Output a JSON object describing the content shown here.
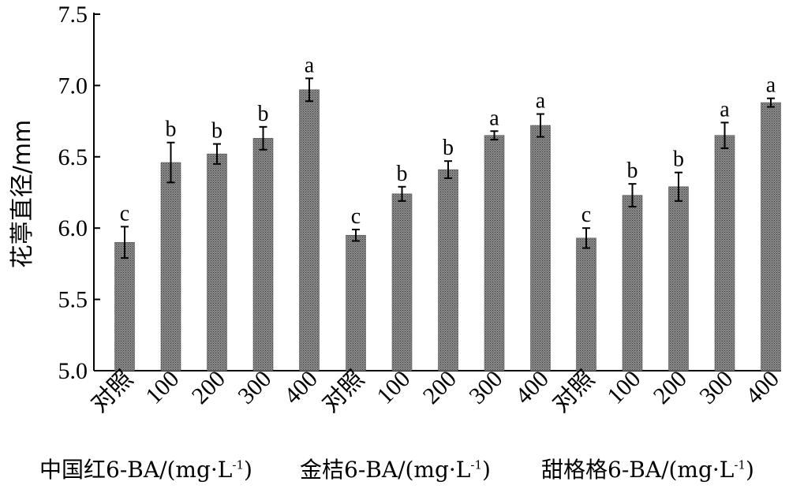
{
  "chart_data": {
    "type": "bar",
    "ylabel": "花葶直径/mm",
    "ylim": [
      5.0,
      7.5
    ],
    "yticks": [
      "5.0",
      "5.5",
      "6.0",
      "6.5",
      "7.0",
      "7.5"
    ],
    "grid": false,
    "bar_color": "#7a7a7a",
    "groups": [
      {
        "label": {
          "main": "中国红6-BA/(mg·L",
          "sup": "-1",
          "tail": ")"
        },
        "categories": [
          "对照",
          "100",
          "200",
          "300",
          "400"
        ],
        "values": [
          5.9,
          6.46,
          6.52,
          6.63,
          6.97
        ],
        "errors": [
          0.11,
          0.14,
          0.07,
          0.08,
          0.08
        ],
        "letters": [
          "c",
          "b",
          "b",
          "b",
          "a"
        ]
      },
      {
        "label": {
          "main": "金桔6-BA/(mg·L",
          "sup": "-1",
          "tail": ")"
        },
        "categories": [
          "对照",
          "100",
          "200",
          "300",
          "400"
        ],
        "values": [
          5.95,
          6.24,
          6.41,
          6.65,
          6.72
        ],
        "errors": [
          0.04,
          0.05,
          0.06,
          0.03,
          0.08
        ],
        "letters": [
          "c",
          "b",
          "b",
          "a",
          "a"
        ]
      },
      {
        "label": {
          "main": "甜格格6-BA/(mg·L",
          "sup": "-1",
          "tail": ")"
        },
        "categories": [
          "对照",
          "100",
          "200",
          "300",
          "400"
        ],
        "values": [
          5.93,
          6.23,
          6.29,
          6.65,
          6.88
        ],
        "errors": [
          0.07,
          0.08,
          0.1,
          0.09,
          0.03
        ],
        "letters": [
          "c",
          "b",
          "b",
          "a",
          "a"
        ]
      }
    ]
  }
}
